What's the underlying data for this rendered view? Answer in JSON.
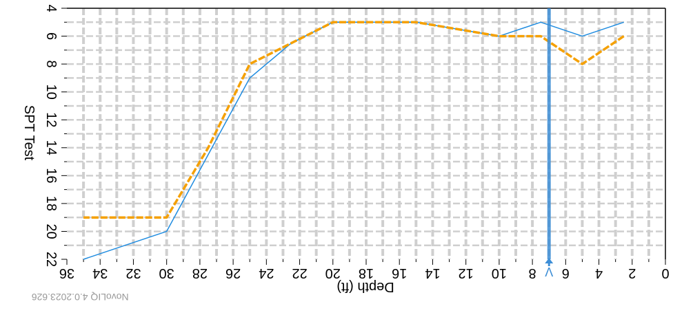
{
  "footer": {
    "version_text": "NovoLIQ 4.0.2023.626"
  },
  "chart_data": {
    "type": "line",
    "title": "",
    "xlabel": "Depth (ft)",
    "ylabel": "SPT Test",
    "x_axis": {
      "min": 0,
      "max": 36,
      "ticks": [
        0,
        2,
        4,
        6,
        8,
        10,
        12,
        14,
        16,
        18,
        20,
        22,
        24,
        26,
        28,
        30,
        32,
        34,
        36
      ]
    },
    "y_axis": {
      "min": 4,
      "max": 22,
      "ticks": [
        4,
        6,
        8,
        10,
        12,
        14,
        16,
        18,
        20,
        22
      ]
    },
    "grid": true,
    "orientation": "rotated-180",
    "series": [
      {
        "color": "#1f8ce0",
        "style": "solid",
        "points": [
          [
            2.5,
            5
          ],
          [
            5,
            6
          ],
          [
            7.5,
            5
          ],
          [
            10,
            6
          ],
          [
            12.5,
            5.5
          ],
          [
            15,
            5
          ],
          [
            17.5,
            5
          ],
          [
            20,
            5
          ],
          [
            22.5,
            6.5
          ],
          [
            25,
            9
          ],
          [
            27.5,
            14.5
          ],
          [
            30,
            20
          ],
          [
            32.5,
            21
          ],
          [
            35,
            22
          ]
        ]
      },
      {
        "color": "#f5a000",
        "style": "dashed",
        "points": [
          [
            2.5,
            6
          ],
          [
            5,
            8
          ],
          [
            7.5,
            6
          ],
          [
            10,
            6
          ],
          [
            12.5,
            5.5
          ],
          [
            15,
            5
          ],
          [
            17.5,
            5
          ],
          [
            20,
            5
          ],
          [
            22.5,
            6.5
          ],
          [
            25,
            8
          ],
          [
            27.5,
            14
          ],
          [
            30,
            19
          ],
          [
            32.5,
            19
          ],
          [
            35,
            19
          ]
        ]
      }
    ],
    "marker": {
      "x": 7,
      "color": "#3d8ed6",
      "label": "V"
    }
  }
}
